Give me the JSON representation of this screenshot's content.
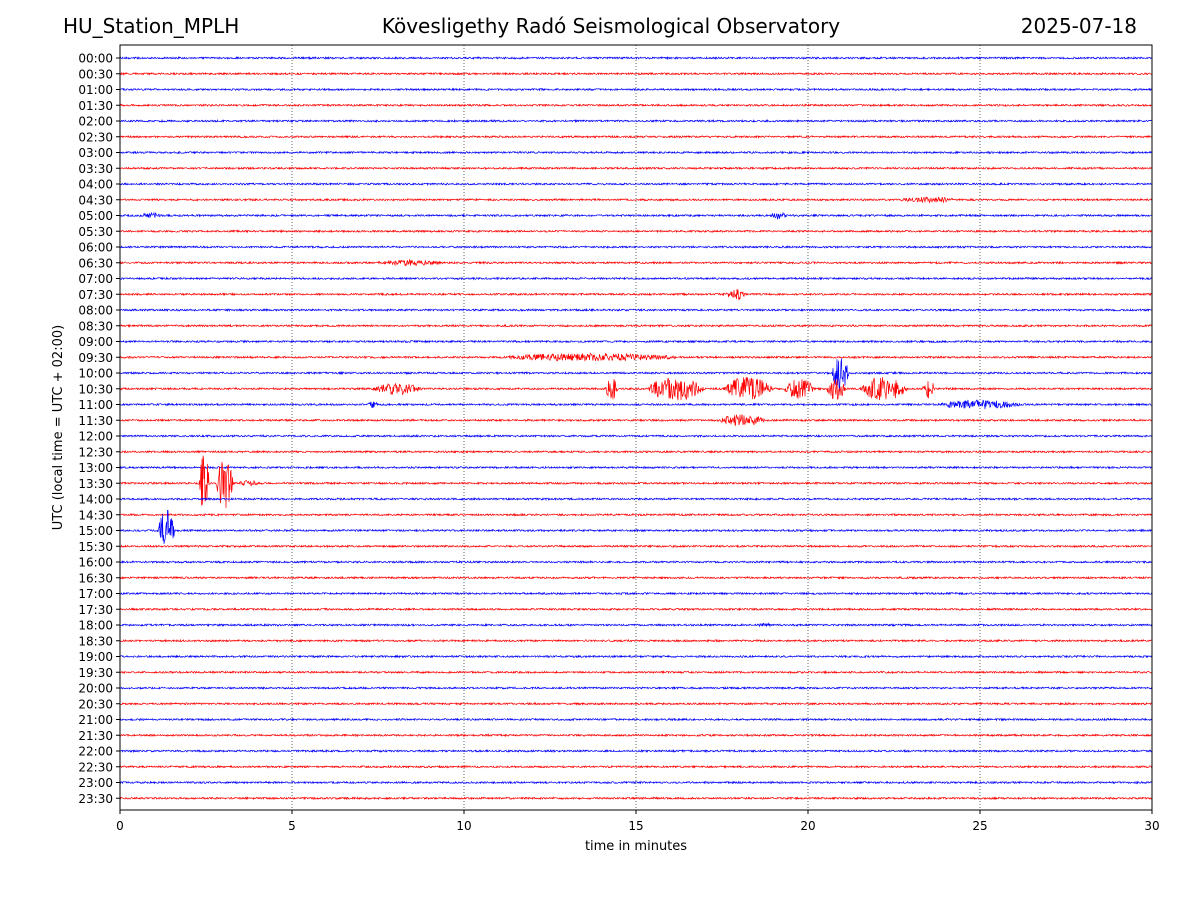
{
  "header": {
    "station": "HU_Station_MPLH",
    "observatory": "Kövesligethy Radó Seismological Observatory",
    "date": "2025-07-18"
  },
  "chart_data": {
    "type": "line",
    "title": "Kövesligethy Radó Seismological Observatory",
    "xlabel": "time in minutes",
    "ylabel": "UTC (local time = UTC + 02:00)",
    "xlim": [
      0,
      30
    ],
    "xticks": [
      0,
      5,
      10,
      15,
      20,
      25,
      30
    ],
    "grid": "vertical dotted at 5-minute ticks",
    "colors": {
      "even_rows": "#0000ff",
      "odd_rows": "#ff0000",
      "grid": "#000000"
    },
    "rows": [
      "00:00",
      "00:30",
      "01:00",
      "01:30",
      "02:00",
      "02:30",
      "03:00",
      "03:30",
      "04:00",
      "04:30",
      "05:00",
      "05:30",
      "06:00",
      "06:30",
      "07:00",
      "07:30",
      "08:00",
      "08:30",
      "09:00",
      "09:30",
      "10:00",
      "10:30",
      "11:00",
      "11:30",
      "12:00",
      "12:30",
      "13:00",
      "13:30",
      "14:00",
      "14:30",
      "15:00",
      "15:30",
      "16:00",
      "16:30",
      "17:00",
      "17:30",
      "18:00",
      "18:30",
      "19:00",
      "19:30",
      "20:00",
      "20:30",
      "21:00",
      "21:30",
      "22:00",
      "22:30",
      "23:00",
      "23:30"
    ],
    "events": [
      {
        "row": "04:30",
        "start_min": 22.5,
        "end_min": 24.5,
        "amplitude": 3
      },
      {
        "row": "05:00",
        "start_min": 0.6,
        "end_min": 1.2,
        "amplitude": 3
      },
      {
        "row": "05:00",
        "start_min": 18.9,
        "end_min": 19.4,
        "amplitude": 4
      },
      {
        "row": "06:30",
        "start_min": 7.3,
        "end_min": 9.5,
        "amplitude": 3
      },
      {
        "row": "07:30",
        "start_min": 17.6,
        "end_min": 18.2,
        "amplitude": 6
      },
      {
        "row": "09:30",
        "start_min": 10.8,
        "end_min": 16.5,
        "amplitude": 4
      },
      {
        "row": "10:00",
        "start_min": 20.7,
        "end_min": 21.2,
        "amplitude": 20
      },
      {
        "row": "10:30",
        "start_min": 7.3,
        "end_min": 8.8,
        "amplitude": 6
      },
      {
        "row": "10:30",
        "start_min": 14.1,
        "end_min": 14.5,
        "amplitude": 11
      },
      {
        "row": "10:30",
        "start_min": 15.3,
        "end_min": 17.0,
        "amplitude": 12
      },
      {
        "row": "10:30",
        "start_min": 17.5,
        "end_min": 19.0,
        "amplitude": 12
      },
      {
        "row": "10:30",
        "start_min": 19.3,
        "end_min": 20.2,
        "amplitude": 11
      },
      {
        "row": "10:30",
        "start_min": 20.5,
        "end_min": 21.1,
        "amplitude": 11
      },
      {
        "row": "10:30",
        "start_min": 21.5,
        "end_min": 22.9,
        "amplitude": 12
      },
      {
        "row": "10:30",
        "start_min": 23.3,
        "end_min": 23.7,
        "amplitude": 10
      },
      {
        "row": "11:00",
        "start_min": 7.2,
        "end_min": 7.5,
        "amplitude": 4
      },
      {
        "row": "11:00",
        "start_min": 23.7,
        "end_min": 26.3,
        "amplitude": 5
      },
      {
        "row": "11:30",
        "start_min": 17.4,
        "end_min": 18.8,
        "amplitude": 6
      },
      {
        "row": "13:30",
        "start_min": 2.3,
        "end_min": 2.6,
        "amplitude": 30
      },
      {
        "row": "13:30",
        "start_min": 2.8,
        "end_min": 3.3,
        "amplitude": 26
      },
      {
        "row": "13:30",
        "start_min": 3.4,
        "end_min": 4.1,
        "amplitude": 3
      },
      {
        "row": "15:00",
        "start_min": 1.1,
        "end_min": 1.6,
        "amplitude": 22
      },
      {
        "row": "18:00",
        "start_min": 18.5,
        "end_min": 19.0,
        "amplitude": 2
      }
    ]
  }
}
